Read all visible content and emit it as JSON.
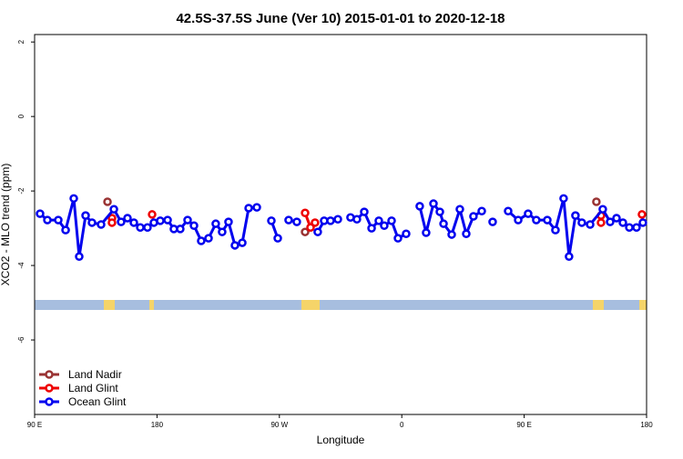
{
  "chart_data": {
    "type": "line",
    "title": "42.5S-37.5S June (Ver 10)   2015-01-01 to 2020-12-18",
    "xlabel": "Longitude",
    "ylabel": "XCO2 - MLO trend (ppm)",
    "xlim": [
      90,
      540
    ],
    "ylim": [
      -8,
      2.2
    ],
    "xticks": [
      {
        "value": 90,
        "label": "90 E"
      },
      180,
      {
        "value": 270,
        "label": "90 W"
      },
      {
        "value": 360,
        "label": "0"
      },
      {
        "value": 450,
        "label": "90 E"
      },
      {
        "value": 540,
        "label": "180"
      }
    ],
    "yticks": [
      -6,
      -4,
      -2,
      0,
      2
    ],
    "legend": "bottomleft",
    "series": [
      {
        "name": "Land Nadir",
        "color": "#993333",
        "x": [
          143.6,
          null,
          288.9,
          null,
          503.1
        ],
        "values": [
          -2.29,
          null,
          -3.1,
          null,
          -2.29
        ]
      },
      {
        "name": "Land Glint",
        "color": "#ee0000",
        "x": [
          146.9,
          146.9,
          null,
          176.4,
          null,
          288.9,
          292.9,
          296.2,
          null,
          506.5,
          506.5,
          null,
          536.6
        ],
        "values": [
          -2.73,
          -2.85,
          null,
          -2.63,
          null,
          -2.59,
          -2.98,
          -2.85,
          null,
          -2.66,
          -2.85,
          null,
          -2.63
        ]
      },
      {
        "name": "Ocean Glint",
        "color": "#0000ee",
        "x": [
          94.0,
          99.4,
          107.4,
          112.8,
          118.8,
          122.8,
          127.5,
          132.2,
          138.9,
          148.3,
          153.6,
          158.3,
          163.0,
          167.7,
          173.0,
          177.7,
          182.4,
          187.8,
          192.4,
          197.1,
          202.5,
          207.2,
          212.5,
          217.9,
          223.2,
          227.9,
          232.6,
          237.3,
          242.7,
          247.4,
          253.4,
          null,
          264.1,
          268.8,
          null,
          276.8,
          282.8,
          null,
          298.2,
          302.9,
          307.6,
          313.0,
          null,
          322.3,
          327.0,
          332.4,
          337.8,
          343.1,
          347.1,
          352.5,
          357.2,
          363.2,
          null,
          373.2,
          377.9,
          383.3,
          388.0,
          390.7,
          396.7,
          402.7,
          407.4,
          412.7,
          418.8,
          null,
          426.8,
          null,
          438.2,
          445.6,
          452.9,
          458.9,
          467.0,
          473.0,
          479.0,
          483.0,
          487.7,
          492.4,
          498.5,
          507.8,
          513.2,
          517.9,
          522.6,
          527.3,
          532.6,
          537.3
        ],
        "values": [
          -2.61,
          -2.78,
          -2.78,
          -3.05,
          -2.2,
          -3.76,
          -2.66,
          -2.85,
          -2.9,
          -2.49,
          -2.83,
          -2.73,
          -2.85,
          -2.98,
          -2.98,
          -2.85,
          -2.8,
          -2.78,
          -3.02,
          -3.02,
          -2.78,
          -2.93,
          -3.34,
          -3.27,
          -2.88,
          -3.1,
          -2.83,
          -3.46,
          -3.39,
          -2.46,
          -2.44,
          null,
          -2.8,
          -3.27,
          null,
          -2.78,
          -2.83,
          null,
          -3.1,
          -2.8,
          -2.8,
          -2.76,
          null,
          -2.71,
          -2.76,
          -2.56,
          -3.0,
          -2.8,
          -2.93,
          -2.8,
          -3.27,
          -3.15,
          null,
          -2.41,
          -3.12,
          -2.34,
          -2.56,
          -2.88,
          -3.17,
          -2.49,
          -3.15,
          -2.68,
          -2.54,
          null,
          -2.83,
          null,
          -2.54,
          -2.78,
          -2.61,
          -2.78,
          -2.78,
          -3.05,
          -2.2,
          -3.76,
          -2.66,
          -2.85,
          -2.9,
          -2.49,
          -2.83,
          -2.73,
          -2.85,
          -2.98,
          -2.98,
          -2.85
        ]
      }
    ]
  }
}
